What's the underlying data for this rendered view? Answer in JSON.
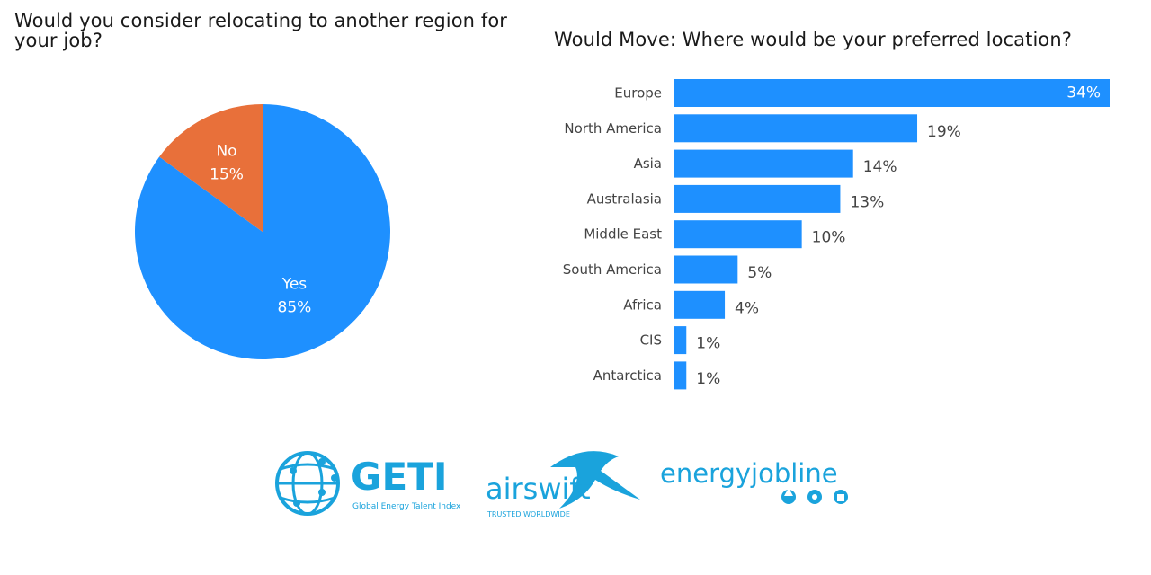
{
  "colors": {
    "blue": "#1e90ff",
    "orange": "#e8703a",
    "logo_blue": "#1aa3dc",
    "text": "#444444"
  },
  "chart_data": [
    {
      "type": "pie",
      "title": "Would you consider relocating to another region for your job?",
      "slices": [
        {
          "label": "Yes",
          "value": 85,
          "display": "85%",
          "color": "#1e90ff"
        },
        {
          "label": "No",
          "value": 15,
          "display": "15%",
          "color": "#e8703a"
        }
      ]
    },
    {
      "type": "bar",
      "orientation": "horizontal",
      "title": "Would Move: Where would be your preferred location?",
      "categories": [
        "Europe",
        "North America",
        "Asia",
        "Australasia",
        "Middle East",
        "South America",
        "Africa",
        "CIS",
        "Antarctica"
      ],
      "values": [
        34,
        19,
        14,
        13,
        10,
        5,
        4,
        1,
        1
      ],
      "labels": [
        "34%",
        "19%",
        "14%",
        "13%",
        "10%",
        "5%",
        "4%",
        "1%",
        "1%"
      ],
      "xlim": [
        0,
        34
      ],
      "grid": false,
      "color": "#1e90ff"
    }
  ],
  "logos": {
    "geti": {
      "name": "GETI",
      "tagline": "Global Energy Talent Index"
    },
    "airswift": {
      "name": "airswift",
      "tagline": "TRUSTED WORLDWIDE"
    },
    "energyjobline": {
      "name": "energyjobline"
    }
  }
}
